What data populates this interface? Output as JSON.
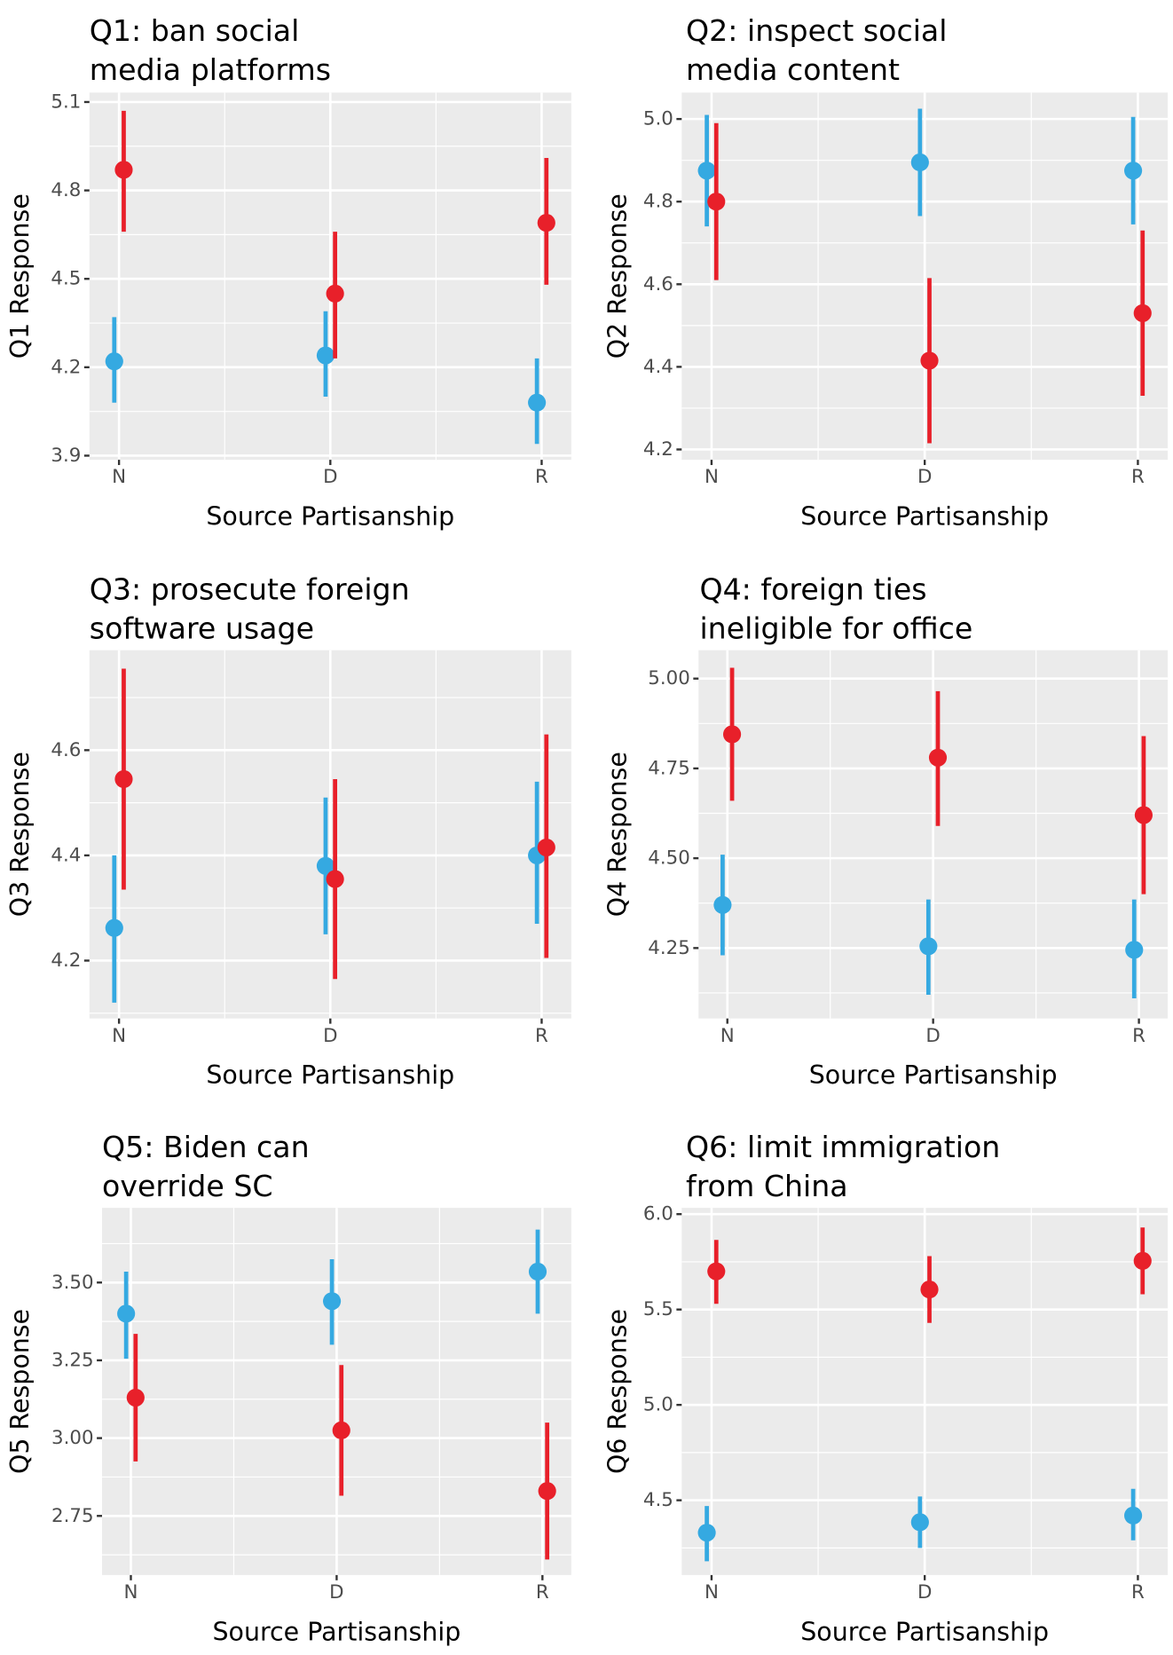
{
  "colors": {
    "panel_bg": "#ebebeb",
    "grid": "#ffffff",
    "series_blue": "#35a9e1",
    "series_red": "#e8202a"
  },
  "chart_data": [
    {
      "type": "scatter",
      "subtype": "pointrange",
      "title": [
        "Q1: ban social",
        " media platforms"
      ],
      "xlabel": "Source Partisanship",
      "ylabel": "Q1 Response",
      "categories": [
        "N",
        "D",
        "R"
      ],
      "yticks": [
        "3.9",
        "4.2",
        "4.5",
        "4.8",
        "5.1"
      ],
      "ylim": [
        3.886,
        5.132
      ],
      "grid": true,
      "series": [
        {
          "color": "#35a9e1",
          "values": [
            4.22,
            4.24,
            4.08
          ],
          "lower": [
            4.08,
            4.1,
            3.94
          ],
          "upper": [
            4.37,
            4.39,
            4.23
          ]
        },
        {
          "color": "#e8202a",
          "values": [
            4.87,
            4.45,
            4.69
          ],
          "lower": [
            4.66,
            4.23,
            4.48
          ],
          "upper": [
            5.07,
            4.66,
            4.91
          ]
        }
      ]
    },
    {
      "type": "scatter",
      "subtype": "pointrange",
      "title": [
        "Q2: inspect social",
        " media content"
      ],
      "xlabel": "Source Partisanship",
      "ylabel": "Q2 Response",
      "categories": [
        "N",
        "D",
        "R"
      ],
      "yticks": [
        "4.2",
        "4.4",
        "4.6",
        "4.8",
        "5.0"
      ],
      "ylim": [
        4.175,
        5.064
      ],
      "grid": true,
      "series": [
        {
          "color": "#35a9e1",
          "values": [
            4.875,
            4.895,
            4.875
          ],
          "lower": [
            4.74,
            4.765,
            4.745
          ],
          "upper": [
            5.01,
            5.025,
            5.005
          ]
        },
        {
          "color": "#e8202a",
          "values": [
            4.8,
            4.415,
            4.53
          ],
          "lower": [
            4.61,
            4.215,
            4.33
          ],
          "upper": [
            4.99,
            4.615,
            4.73
          ]
        }
      ]
    },
    {
      "type": "scatter",
      "subtype": "pointrange",
      "title": [
        "Q3: prosecute foreign",
        " software usage"
      ],
      "xlabel": "Source Partisanship",
      "ylabel": "Q3 Response",
      "categories": [
        "N",
        "D",
        "R"
      ],
      "yticks": [
        "4.2",
        "4.4",
        "4.6"
      ],
      "ylim": [
        4.09,
        4.79
      ],
      "grid": true,
      "series": [
        {
          "color": "#35a9e1",
          "values": [
            4.262,
            4.38,
            4.4
          ],
          "lower": [
            4.12,
            4.25,
            4.27
          ],
          "upper": [
            4.4,
            4.51,
            4.54
          ]
        },
        {
          "color": "#e8202a",
          "values": [
            4.545,
            4.355,
            4.415
          ],
          "lower": [
            4.335,
            4.165,
            4.205
          ],
          "upper": [
            4.755,
            4.545,
            4.63
          ]
        }
      ]
    },
    {
      "type": "scatter",
      "subtype": "pointrange",
      "title": [
        "Q4: foreign ties",
        " ineligible for office"
      ],
      "xlabel": "Source Partisanship",
      "ylabel": "Q4 Response",
      "categories": [
        "N",
        "D",
        "R"
      ],
      "yticks": [
        "4.25",
        "4.50",
        "4.75",
        "5.00"
      ],
      "ylim": [
        4.054,
        5.079
      ],
      "grid": true,
      "series": [
        {
          "color": "#35a9e1",
          "values": [
            4.37,
            4.255,
            4.245
          ],
          "lower": [
            4.23,
            4.12,
            4.11
          ],
          "upper": [
            4.51,
            4.385,
            4.385
          ]
        },
        {
          "color": "#e8202a",
          "values": [
            4.845,
            4.78,
            4.62
          ],
          "lower": [
            4.66,
            4.59,
            4.4
          ],
          "upper": [
            5.03,
            4.965,
            4.84
          ]
        }
      ]
    },
    {
      "type": "scatter",
      "subtype": "pointrange",
      "title": [
        "Q5: Biden can",
        " override SC"
      ],
      "xlabel": "Source Partisanship",
      "ylabel": "Q5 Response",
      "categories": [
        "N",
        "D",
        "R"
      ],
      "yticks": [
        "2.75",
        "3.00",
        "3.25",
        "3.50"
      ],
      "ylim": [
        2.56,
        3.74
      ],
      "grid": true,
      "series": [
        {
          "color": "#35a9e1",
          "values": [
            3.4,
            3.44,
            3.535
          ],
          "lower": [
            3.255,
            3.3,
            3.4
          ],
          "upper": [
            3.535,
            3.575,
            3.67
          ]
        },
        {
          "color": "#e8202a",
          "values": [
            3.13,
            3.025,
            2.83
          ],
          "lower": [
            2.925,
            2.815,
            2.61
          ],
          "upper": [
            3.335,
            3.235,
            3.05
          ]
        }
      ]
    },
    {
      "type": "scatter",
      "subtype": "pointrange",
      "title": [
        "Q6: limit immigration",
        " from China"
      ],
      "xlabel": "Source Partisanship",
      "ylabel": "Q6 Response",
      "categories": [
        "N",
        "D",
        "R"
      ],
      "yticks": [
        "4.5",
        "5.0",
        "5.5",
        "6.0"
      ],
      "ylim": [
        4.108,
        6.033
      ],
      "grid": true,
      "series": [
        {
          "color": "#35a9e1",
          "values": [
            4.33,
            4.385,
            4.42
          ],
          "lower": [
            4.18,
            4.25,
            4.29
          ],
          "upper": [
            4.47,
            4.52,
            4.56
          ]
        },
        {
          "color": "#e8202a",
          "values": [
            5.7,
            5.605,
            5.755
          ],
          "lower": [
            5.53,
            5.43,
            5.58
          ],
          "upper": [
            5.865,
            5.78,
            5.93
          ]
        }
      ]
    }
  ]
}
